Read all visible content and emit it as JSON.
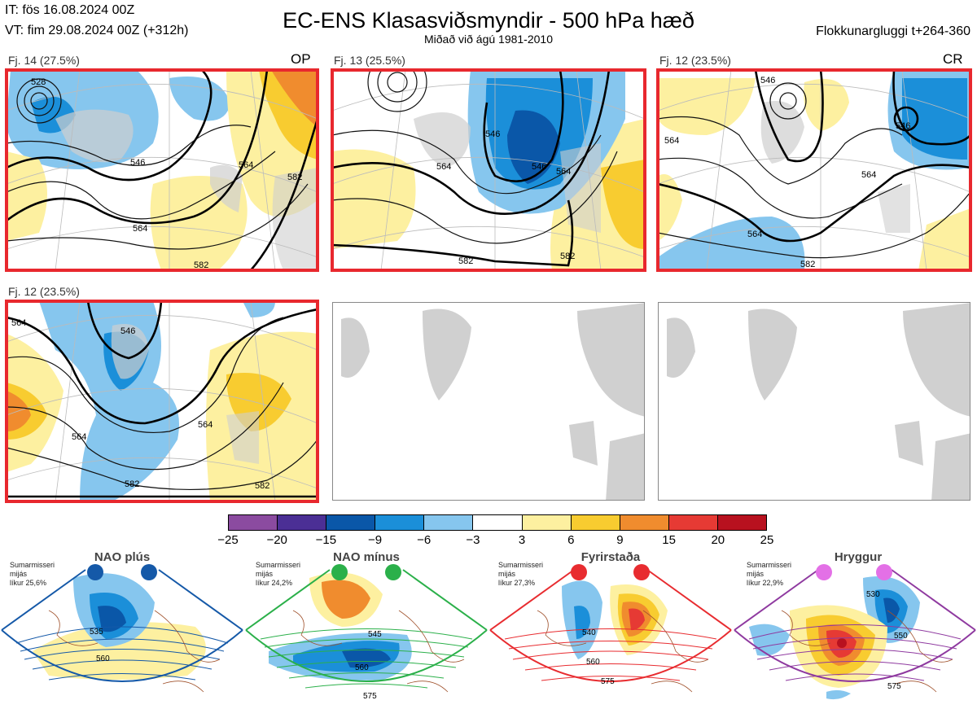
{
  "header": {
    "issue_time": "IT: fös 16.08.2024 00Z",
    "valid_time": "VT: fim 29.08.2024 00Z  (+312h)",
    "title": "EC-ENS Klasasviðsmyndir - 500 hPa hæð",
    "subtitle": "Miðað við ágú 1981-2010",
    "window": "Flokkunargluggi t+264-360"
  },
  "panels": [
    {
      "label": "Fj. 14 (27.5%)",
      "tag": "OP",
      "contours": [
        "528",
        "546",
        "564",
        "564",
        "582",
        "582"
      ]
    },
    {
      "label": "Fj. 13 (25.5%)",
      "tag": "",
      "contours": [
        "564",
        "546",
        "546",
        "564",
        "582",
        "582"
      ]
    },
    {
      "label": "Fj. 12 (23.5%)",
      "tag": "CR",
      "contours": [
        "546",
        "546",
        "564",
        "564",
        "564",
        "582"
      ]
    },
    {
      "label": "Fj. 12 (23.5%)",
      "tag": "",
      "contours": [
        "564",
        "546",
        "564",
        "564",
        "582",
        "582"
      ]
    }
  ],
  "colorbar": {
    "colors": [
      "#8b4ba0",
      "#4b2f95",
      "#0a57a8",
      "#1b8fd9",
      "#86c6ee",
      "#ffffff",
      "#fdf0a0",
      "#f8cc30",
      "#f08c2e",
      "#e63a34",
      "#b8111f"
    ],
    "labels": [
      "−25",
      "−20",
      "−15",
      "−9",
      "−6",
      "−3",
      "3",
      "6",
      "9",
      "15",
      "20",
      "25"
    ]
  },
  "regimes": [
    {
      "name": "NAO plús",
      "season": "Sumarmisseri",
      "mean": "mijás",
      "likelihood": "líkur 25,6%",
      "color": "#1559a8",
      "contours": [
        "535",
        "560"
      ]
    },
    {
      "name": "NAO mínus",
      "season": "Sumarmisseri",
      "mean": "mijás",
      "likelihood": "líkur 24,2%",
      "color": "#2bb04a",
      "contours": [
        "545",
        "560",
        "575"
      ]
    },
    {
      "name": "Fyrirstaða",
      "season": "Sumarmisseri",
      "mean": "mijás",
      "likelihood": "líkur 27,3%",
      "color": "#e82c30",
      "contours": [
        "540",
        "560",
        "575"
      ]
    },
    {
      "name": "Hryggur",
      "season": "Sumarmisseri",
      "mean": "mijás",
      "likelihood": "líkur 22,9%",
      "color": "#e370e6",
      "contours": [
        "530",
        "550",
        "575"
      ]
    }
  ]
}
